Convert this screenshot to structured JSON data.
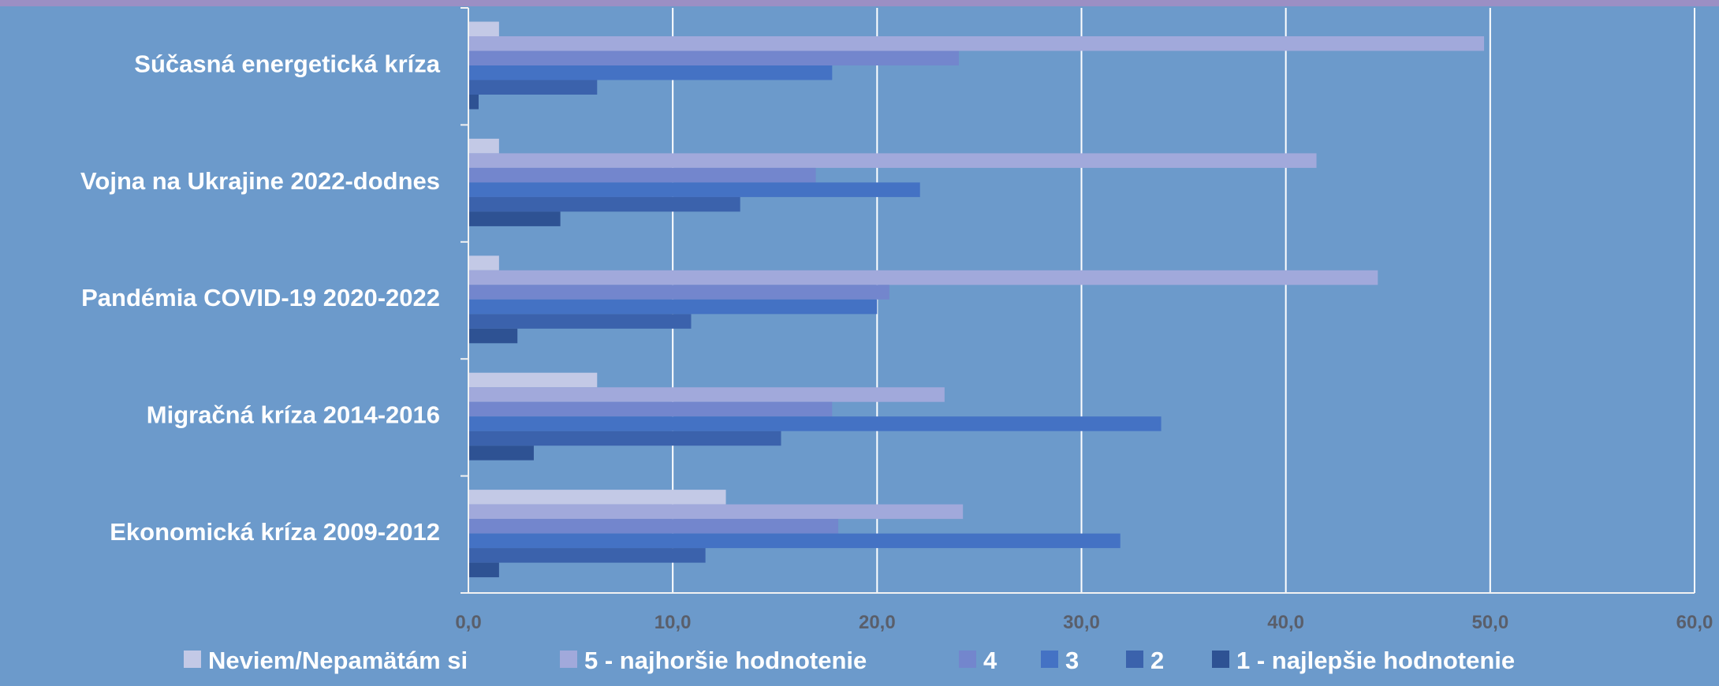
{
  "chart_data": {
    "type": "bar",
    "orientation": "horizontal",
    "categories": [
      "Súčasná energetická kríza",
      "Vojna na Ukrajine 2022-dodnes",
      "Pandémia COVID-19 2020-2022",
      "Migračná kríza 2014-2016",
      "Ekonomická kríza 2009-2012"
    ],
    "series": [
      {
        "name": "Neviem/Nepamätám si",
        "color": "#c3c9e6",
        "values": [
          1.5,
          1.5,
          1.5,
          6.3,
          12.6
        ]
      },
      {
        "name": "5 - najhoršie hodnotenie",
        "color": "#a1a9db",
        "values": [
          49.7,
          41.5,
          44.5,
          23.3,
          24.2
        ]
      },
      {
        "name": "4",
        "color": "#7386cd",
        "values": [
          24.0,
          17.0,
          20.6,
          17.8,
          18.1
        ]
      },
      {
        "name": "3",
        "color": "#4472c4",
        "values": [
          17.8,
          22.1,
          20.0,
          33.9,
          31.9
        ]
      },
      {
        "name": "2",
        "color": "#3b62ac",
        "values": [
          6.3,
          13.3,
          10.9,
          15.3,
          11.6
        ]
      },
      {
        "name": "1 - najlepšie hodnotenie",
        "color": "#2e5293",
        "values": [
          0.5,
          4.5,
          2.4,
          3.2,
          1.5
        ]
      }
    ],
    "xlim": [
      0,
      60
    ],
    "xticks": [
      "0,0",
      "10,0",
      "20,0",
      "30,0",
      "40,0",
      "50,0",
      "60,0"
    ],
    "grid": true,
    "legend_position": "bottom",
    "title": "",
    "xlabel": "",
    "ylabel": ""
  }
}
